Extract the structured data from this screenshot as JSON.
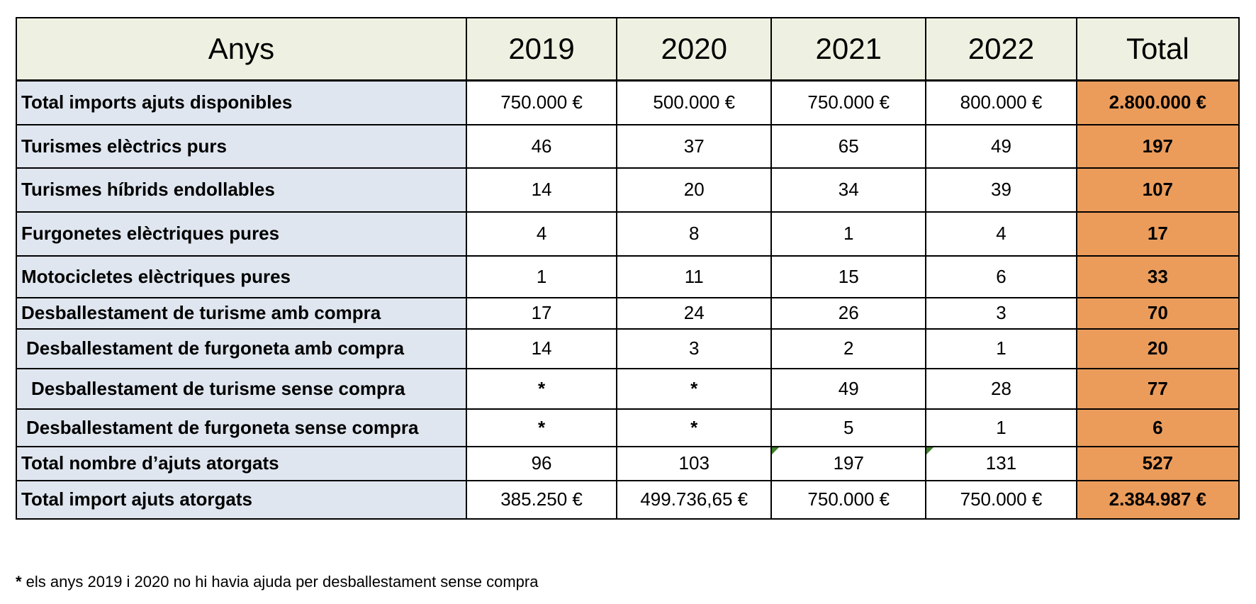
{
  "table": {
    "headers": [
      "Anys",
      "2019",
      "2020",
      "2021",
      "2022",
      "Total"
    ],
    "rows": [
      {
        "label": "Total imports ajuts disponibles",
        "values": [
          "750.000 €",
          "500.000 €",
          "750.000 €",
          "800.000 €"
        ],
        "total": "2.800.000 €"
      },
      {
        "label": "Turismes elèctrics purs",
        "values": [
          "46",
          "37",
          "65",
          "49"
        ],
        "total": "197"
      },
      {
        "label": "Turismes híbrids endollables",
        "values": [
          "14",
          "20",
          "34",
          "39"
        ],
        "total": "107"
      },
      {
        "label": "Furgonetes elèctriques pures",
        "values": [
          "4",
          "8",
          "1",
          "4"
        ],
        "total": "17"
      },
      {
        "label": "Motocicletes elèctriques pures",
        "values": [
          "1",
          "11",
          "15",
          "6"
        ],
        "total": "33"
      },
      {
        "label": "Desballestament de turisme amb compra",
        "values": [
          "17",
          "24",
          "26",
          "3"
        ],
        "total": "70"
      },
      {
        "label": "Desballestament de furgoneta amb compra",
        "values": [
          "14",
          "3",
          "2",
          "1"
        ],
        "total": "20"
      },
      {
        "label": "Desballestament de turisme sense compra",
        "values": [
          "*",
          "*",
          "49",
          "28"
        ],
        "total": "77"
      },
      {
        "label": "Desballestament de furgoneta sense compra",
        "values": [
          "*",
          "*",
          "5",
          "1"
        ],
        "total": "6"
      },
      {
        "label": "Total nombre d’ajuts atorgats",
        "values": [
          "96",
          "103",
          "197",
          "131"
        ],
        "total": "527"
      },
      {
        "label": "Total import ajuts atorgats",
        "values": [
          "385.250 €",
          "499.736,65 €",
          "750.000 €",
          "750.000 €"
        ],
        "total": "2.384.987 €"
      }
    ]
  },
  "footnote": {
    "star": "*",
    "text": " els anys 2019 i 2020 no hi havia ajuda per desballestament sense compra"
  },
  "colors": {
    "header_bg": "#eef1e1",
    "label_bg": "#dfe6ef",
    "total_bg": "#eb9c5b",
    "marker": "#3f7f2c"
  }
}
